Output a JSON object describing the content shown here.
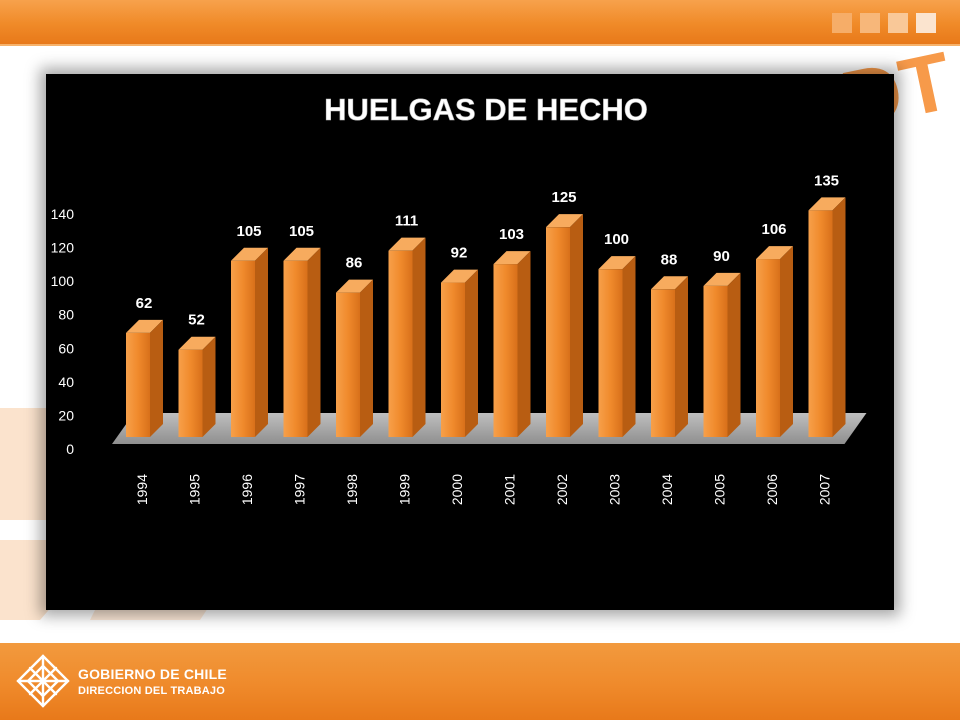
{
  "chart_data": {
    "type": "bar",
    "title": "HUELGAS DE HECHO",
    "categories": [
      "1994",
      "1995",
      "1996",
      "1997",
      "1998",
      "1999",
      "2000",
      "2001",
      "2002",
      "2003",
      "2004",
      "2005",
      "2006",
      "2007"
    ],
    "values": [
      62,
      52,
      105,
      105,
      86,
      111,
      92,
      103,
      125,
      100,
      88,
      90,
      106,
      135
    ],
    "xlabel": "",
    "ylabel": "",
    "ylim": [
      0,
      140
    ],
    "yticks": [
      0,
      20,
      40,
      60,
      80,
      100,
      120,
      140
    ],
    "style": "3d-columns",
    "bar_color": "#f08a2c",
    "background": "#000000",
    "text_color": "#ffffff",
    "grid": false,
    "legend": "none"
  },
  "header": {
    "brand_watermark": "DT"
  },
  "footer": {
    "line1": "GOBIERNO DE CHILE",
    "line2": "DIRECCION DEL TRABAJO"
  },
  "colors": {
    "orange": "#f08a28",
    "light_orange": "#f6b26b"
  }
}
